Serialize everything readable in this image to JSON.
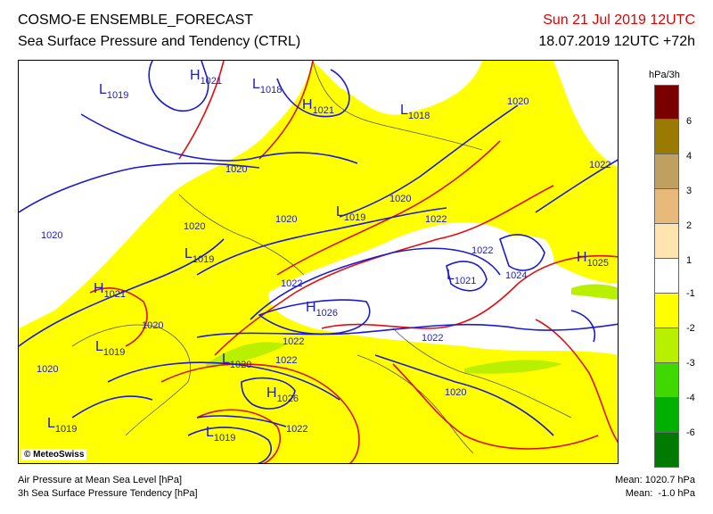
{
  "header": {
    "title": "COSMO-E ENSEMBLE_FORECAST",
    "subtitle": "Sea Surface Pressure and Tendency (CTRL)",
    "valid_time": "Sun 21 Jul 2019 12UTC",
    "run_time": "18.07.2019 12UTC +72h"
  },
  "legend": {
    "unit": "hPa/3h",
    "bins": [
      {
        "label": "6",
        "color": "#7a0000"
      },
      {
        "label": "4",
        "color": "#9a7a00"
      },
      {
        "label": "3",
        "color": "#bfa060"
      },
      {
        "label": "2",
        "color": "#e7b97a"
      },
      {
        "label": "1",
        "color": "#ffe3b0"
      },
      {
        "label": "-1",
        "color": "#ffffff"
      },
      {
        "label": "-2",
        "color": "#ffff00"
      },
      {
        "label": "-3",
        "color": "#b8f000"
      },
      {
        "label": "-4",
        "color": "#3fd800"
      },
      {
        "label": "-6",
        "color": "#00b000"
      },
      {
        "label": "",
        "color": "#007a00"
      }
    ]
  },
  "map": {
    "copyright": "© MeteoSwiss",
    "isobar_labels": [
      "1020",
      "1020",
      "1020",
      "1020",
      "1020",
      "1020",
      "1020",
      "1020",
      "1020",
      "1022",
      "1022",
      "1022",
      "1022",
      "1022",
      "1022",
      "1022",
      "1022",
      "1024"
    ],
    "centers": [
      {
        "type": "H",
        "value": "1021"
      },
      {
        "type": "L",
        "value": "1019"
      },
      {
        "type": "L",
        "value": "1018"
      },
      {
        "type": "H",
        "value": "1021"
      },
      {
        "type": "L",
        "value": "1018"
      },
      {
        "type": "L",
        "value": "1019"
      },
      {
        "type": "L",
        "value": "1019"
      },
      {
        "type": "H",
        "value": "1021"
      },
      {
        "type": "H",
        "value": "1026"
      },
      {
        "type": "L",
        "value": "1021"
      },
      {
        "type": "H",
        "value": "1025"
      },
      {
        "type": "L",
        "value": "1019"
      },
      {
        "type": "L",
        "value": "1020"
      },
      {
        "type": "H",
        "value": "1026"
      },
      {
        "type": "L",
        "value": "1019"
      },
      {
        "type": "L",
        "value": "1019"
      }
    ]
  },
  "footer": {
    "line1": "Air Pressure at Mean Sea Level [hPa]",
    "line2": "3h Sea Surface Pressure Tendency [hPa]",
    "mean1": "Mean: 1020.7 hPa",
    "mean2": "Mean:  -1.0 hPa"
  }
}
